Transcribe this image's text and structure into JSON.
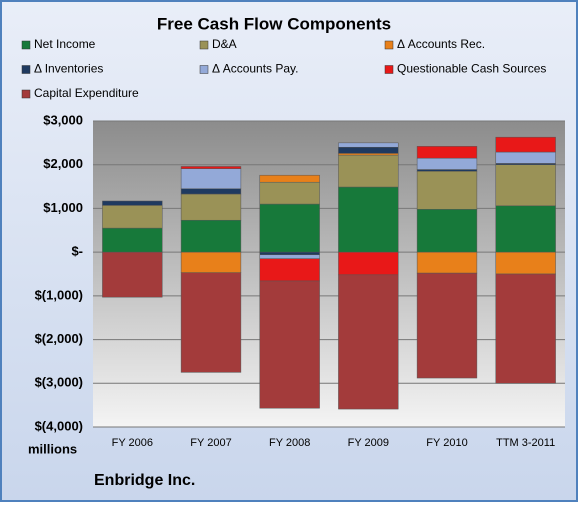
{
  "chart_data": {
    "type": "bar",
    "stacked": true,
    "title": "Free Cash Flow Components",
    "y_unit_label": "millions",
    "footer": "Enbridge Inc.",
    "categories": [
      "FY 2006",
      "FY 2007",
      "FY 2008",
      "FY 2009",
      "FY 2010",
      "TTM 3-2011"
    ],
    "series": [
      {
        "name": "Net Income",
        "color": "#17793a",
        "values": [
          550,
          730,
          1100,
          1490,
          980,
          1060
        ]
      },
      {
        "name": "D&A",
        "color": "#9a9257",
        "values": [
          520,
          600,
          500,
          730,
          870,
          940
        ]
      },
      {
        "name": "Δ Accounts Rec.",
        "color": "#e8801a",
        "values": [
          0,
          -470,
          160,
          40,
          -480,
          -500
        ]
      },
      {
        "name": "Δ Inventories",
        "color": "#1f3a60",
        "values": [
          100,
          120,
          -60,
          140,
          40,
          30
        ]
      },
      {
        "name": "Δ Accounts Pay.",
        "color": "#93a9d8",
        "values": [
          0,
          460,
          -90,
          100,
          260,
          260
        ]
      },
      {
        "name": "Questionable Cash Sources",
        "color": "#e81818",
        "values": [
          0,
          50,
          -510,
          -520,
          270,
          340
        ]
      },
      {
        "name": "Capital Expenditure",
        "color": "#a33b3b",
        "values": [
          -1030,
          -2280,
          -2910,
          -3070,
          -2400,
          -2500
        ]
      }
    ],
    "ylim": [
      -4000,
      3000
    ],
    "yticks": [
      {
        "value": 3000,
        "label": "$3,000"
      },
      {
        "value": 2000,
        "label": "$2,000"
      },
      {
        "value": 1000,
        "label": "$1,000"
      },
      {
        "value": 0,
        "label": "$-"
      },
      {
        "value": -1000,
        "label": "$(1,000)"
      },
      {
        "value": -2000,
        "label": "$(2,000)"
      },
      {
        "value": -3000,
        "label": "$(3,000)"
      },
      {
        "value": -4000,
        "label": "$(4,000)"
      }
    ],
    "grid": true
  }
}
